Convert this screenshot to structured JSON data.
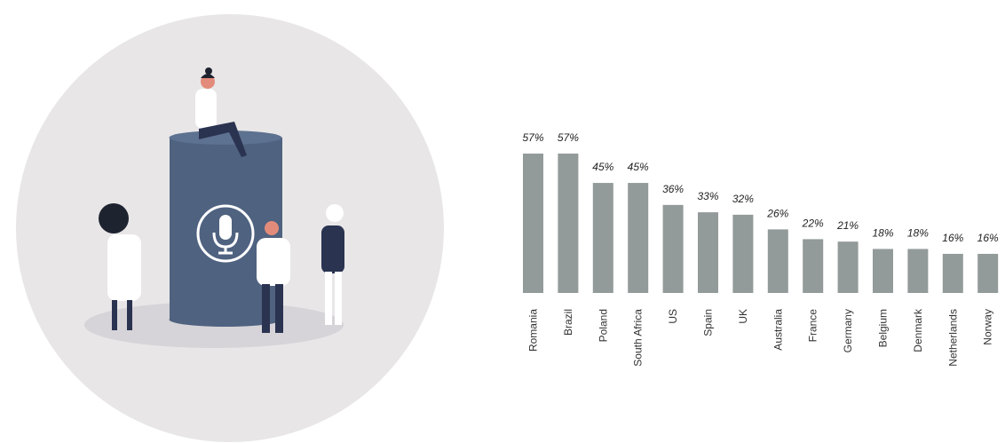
{
  "chart_data": {
    "type": "bar",
    "categories": [
      "Romania",
      "Brazil",
      "Poland",
      "South Africa",
      "US",
      "Spain",
      "UK",
      "Australia",
      "France",
      "Germany",
      "Belgium",
      "Denmark",
      "Netherlands",
      "Norway"
    ],
    "values": [
      57,
      57,
      45,
      45,
      36,
      33,
      32,
      26,
      22,
      21,
      18,
      18,
      16,
      16
    ],
    "value_labels": [
      "57%",
      "57%",
      "45%",
      "45%",
      "36%",
      "33%",
      "32%",
      "26%",
      "22%",
      "21%",
      "18%",
      "18%",
      "16%",
      "16%"
    ],
    "title": "",
    "xlabel": "",
    "ylabel": "",
    "ylim": [
      0,
      60
    ],
    "grid": false,
    "bar_color": "#939a9a"
  },
  "illustration": {
    "circle_color": "#e8e6e7",
    "speaker_color": "#4f6280",
    "icon": "microphone-icon"
  }
}
